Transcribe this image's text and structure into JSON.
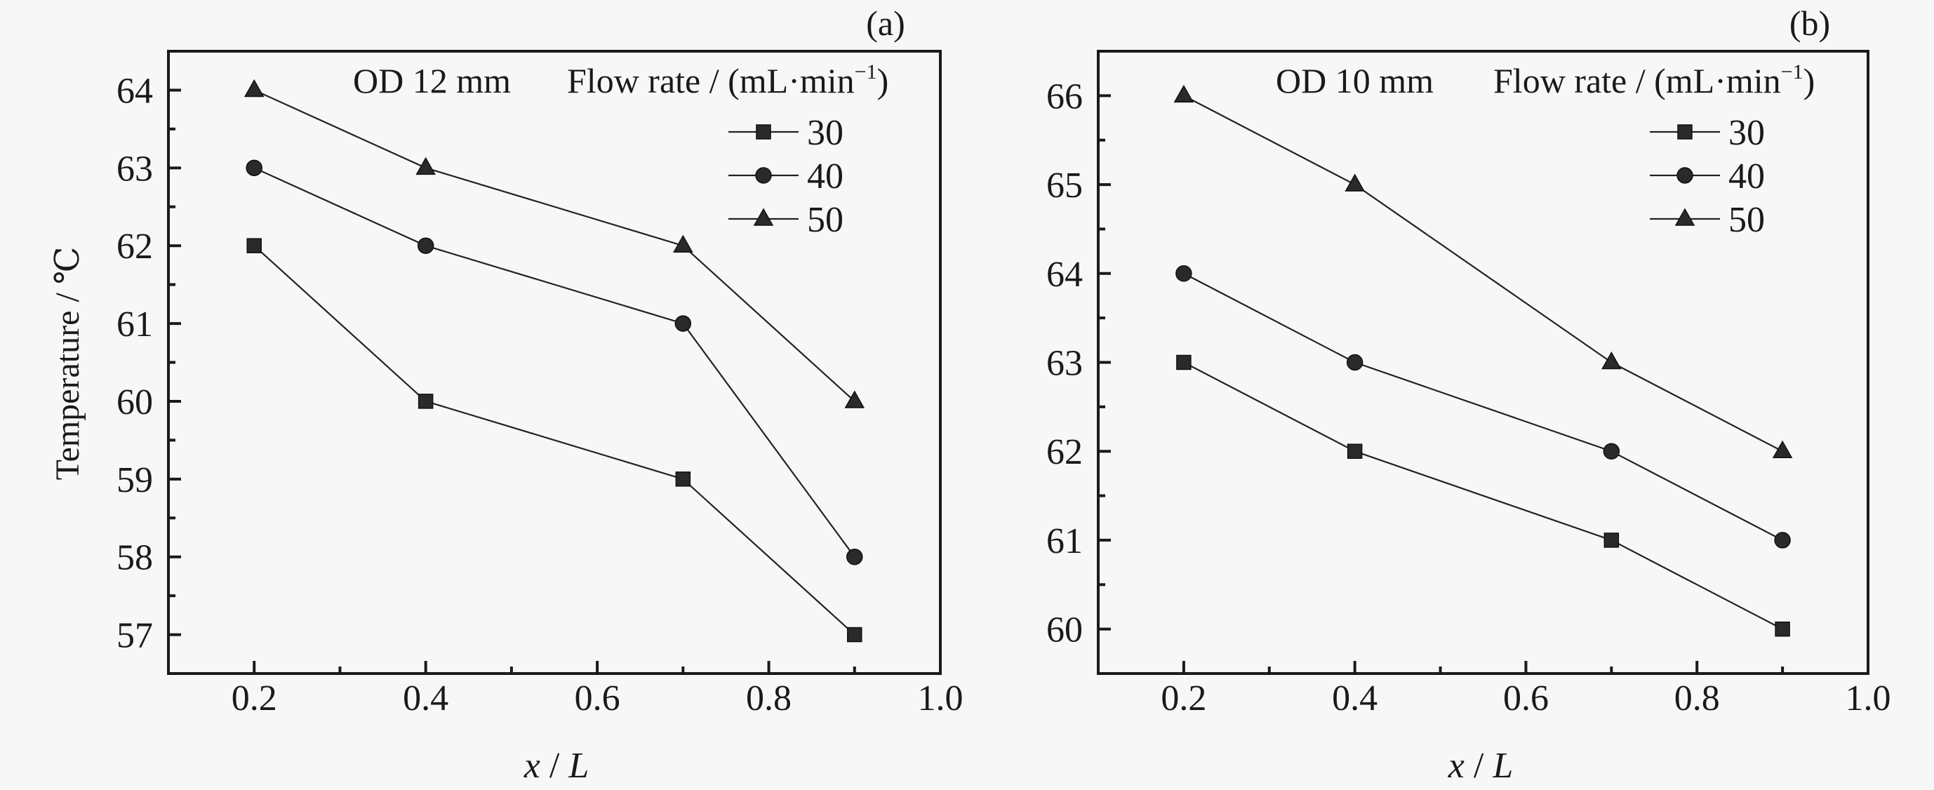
{
  "chart_data": [
    {
      "type": "line",
      "panel_label": "(a)",
      "annotation": "OD 12 mm",
      "legend_title": "Flow rate / (mL·min",
      "legend_title_sup": "−1",
      "legend_title_end": ")",
      "legend_placement": "top-right",
      "xlabel_var": "x",
      "xlabel_sep": " / ",
      "xlabel_var2": "L",
      "ylabel": "Temperature / ℃",
      "xlim": [
        0.1,
        1.0
      ],
      "ylim": [
        56.5,
        64.5
      ],
      "xticks": [
        "0.2",
        "0.4",
        "0.6",
        "0.8",
        "1.0"
      ],
      "yticks": [
        "57",
        "58",
        "59",
        "60",
        "61",
        "62",
        "63",
        "64"
      ],
      "grid": false,
      "x": [
        0.2,
        0.4,
        0.7,
        0.9
      ],
      "series": [
        {
          "name": "30",
          "marker": "square",
          "values": [
            62,
            60,
            59,
            57
          ]
        },
        {
          "name": "40",
          "marker": "circle",
          "values": [
            63,
            62,
            61,
            58
          ]
        },
        {
          "name": "50",
          "marker": "triangle",
          "values": [
            64,
            63,
            62,
            60
          ]
        }
      ]
    },
    {
      "type": "line",
      "panel_label": "(b)",
      "annotation": "OD 10 mm",
      "legend_title": "Flow rate / (mL·min",
      "legend_title_sup": "−1",
      "legend_title_end": ")",
      "legend_placement": "top-right",
      "xlabel_var": "x",
      "xlabel_sep": " / ",
      "xlabel_var2": "L",
      "ylabel": "",
      "xlim": [
        0.1,
        1.0
      ],
      "ylim": [
        59.5,
        66.5
      ],
      "xticks": [
        "0.2",
        "0.4",
        "0.6",
        "0.8",
        "1.0"
      ],
      "yticks": [
        "60",
        "61",
        "62",
        "63",
        "64",
        "65",
        "66"
      ],
      "grid": false,
      "x": [
        0.2,
        0.4,
        0.7,
        0.9
      ],
      "series": [
        {
          "name": "30",
          "marker": "square",
          "values": [
            63,
            62,
            61,
            60
          ]
        },
        {
          "name": "40",
          "marker": "circle",
          "values": [
            64,
            63,
            62,
            61
          ]
        },
        {
          "name": "50",
          "marker": "triangle",
          "values": [
            66,
            65,
            63,
            62
          ]
        }
      ]
    }
  ],
  "colors": {
    "ink": "#1a1a1a",
    "background": "#f7f7f7",
    "marker": "#2a2a2a"
  }
}
